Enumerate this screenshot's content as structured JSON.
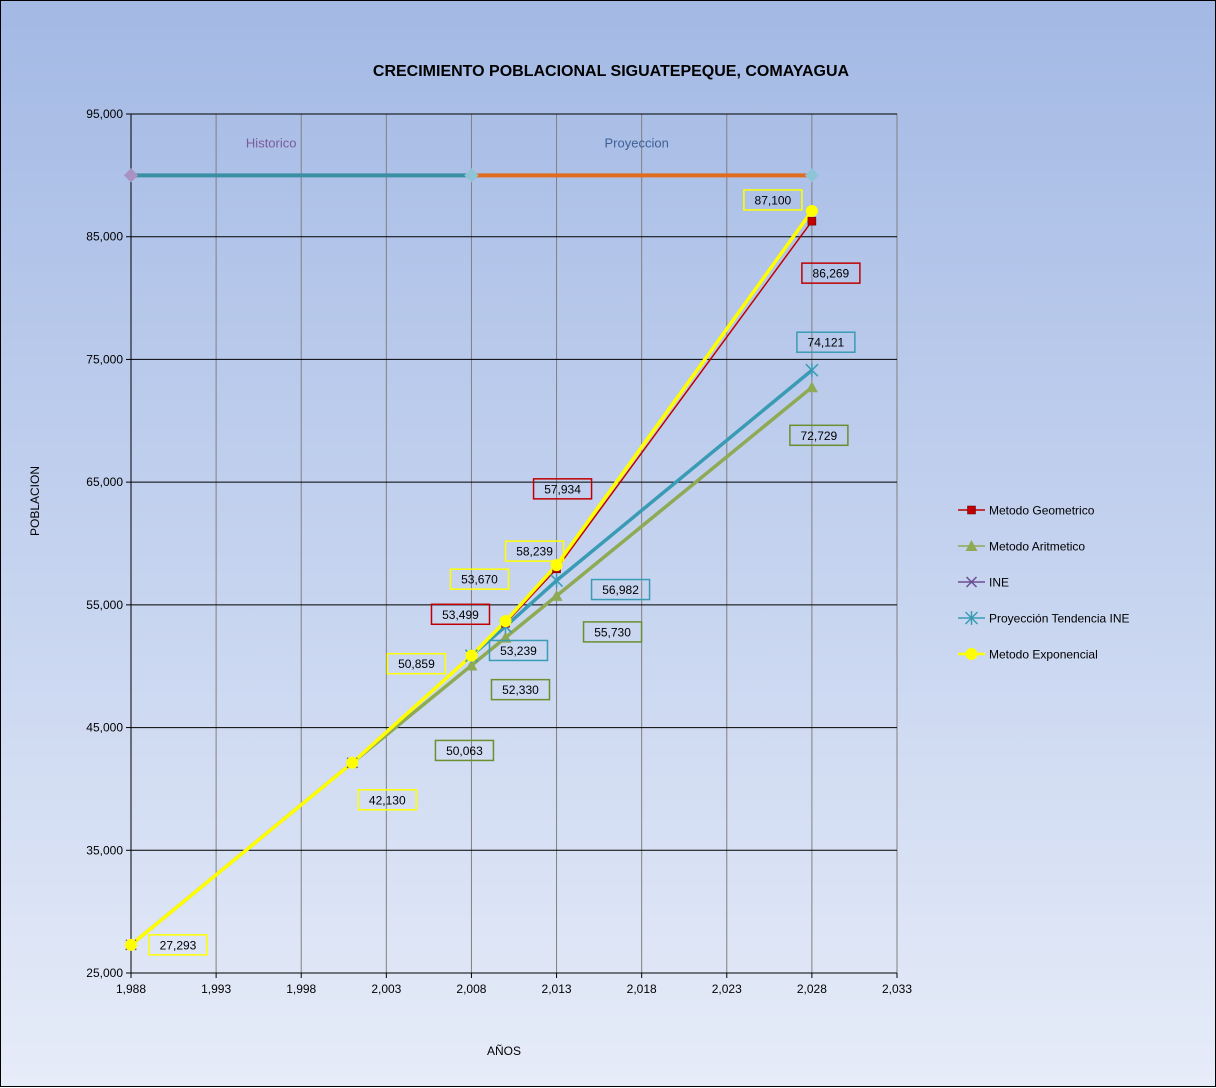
{
  "chart_data": {
    "type": "line",
    "title": "CRECIMIENTO POBLACIONAL SIGUATEPEQUE, COMAYAGUA",
    "xlabel": "AÑOS",
    "ylabel": "POBLACION",
    "xlim": [
      1988,
      2033
    ],
    "ylim": [
      25000,
      95000
    ],
    "x_ticks": [
      1988,
      1993,
      1998,
      2003,
      2008,
      2013,
      2018,
      2023,
      2028,
      2033
    ],
    "x_tick_labels": [
      "1,988",
      "1,993",
      "1,998",
      "2,003",
      "2,008",
      "2,013",
      "2,018",
      "2,023",
      "2,028",
      "2,033"
    ],
    "y_ticks": [
      25000,
      35000,
      45000,
      55000,
      65000,
      75000,
      85000,
      95000
    ],
    "y_tick_labels": [
      "25,000",
      "35,000",
      "45,000",
      "55,000",
      "65,000",
      "75,000",
      "85,000",
      "95,000"
    ],
    "grid": true,
    "legend_position": "right",
    "series": [
      {
        "name": "Metodo Geometrico",
        "color": "#c00000",
        "marker": "square",
        "points": [
          [
            1988,
            27293
          ],
          [
            2001,
            42130
          ],
          [
            2008,
            50859
          ],
          [
            2010,
            53499
          ],
          [
            2013,
            57934
          ],
          [
            2028,
            86269
          ]
        ]
      },
      {
        "name": "Metodo Aritmetico",
        "color": "#8faa55",
        "marker": "triangle",
        "points": [
          [
            1988,
            27293
          ],
          [
            2001,
            42130
          ],
          [
            2008,
            50063
          ],
          [
            2010,
            52330
          ],
          [
            2013,
            55730
          ],
          [
            2028,
            72729
          ]
        ]
      },
      {
        "name": "INE",
        "color": "#6a4c93",
        "marker": "x",
        "points": [
          [
            1988,
            27293
          ],
          [
            2001,
            42130
          ],
          [
            2008,
            50859
          ],
          [
            2010,
            53239
          ]
        ]
      },
      {
        "name": "Proyección Tendencia INE",
        "color": "#3a9bb4",
        "marker": "star",
        "points": [
          [
            2008,
            50859
          ],
          [
            2010,
            53239
          ],
          [
            2013,
            56982
          ],
          [
            2028,
            74121
          ]
        ]
      },
      {
        "name": "Metodo Exponencial",
        "color": "#ffff00",
        "marker": "circle",
        "points": [
          [
            1988,
            27293
          ],
          [
            2001,
            42130
          ],
          [
            2008,
            50859
          ],
          [
            2010,
            53670
          ],
          [
            2013,
            58239
          ],
          [
            2028,
            87100
          ]
        ]
      }
    ],
    "period_lines": [
      {
        "label": "Historico",
        "label_color": "#7a5a9a",
        "color": "#3b8fa3",
        "x_start": 1988,
        "x_end": 2008,
        "y": 90000,
        "start_marker_color": "#a892c2",
        "end_marker_color": "#8fc3d6"
      },
      {
        "label": "Proyeccion",
        "label_color": "#3d5f96",
        "color": "#e06c1e",
        "x_start": 2008,
        "x_end": 2028,
        "y": 90000,
        "start_marker_color": "#8fc3d6",
        "end_marker_color": "#8fc3d6"
      }
    ],
    "data_labels": [
      {
        "text": "27,293",
        "border": "#ffff00",
        "x": 1988,
        "y": 27293
      },
      {
        "text": "42,130",
        "border": "#ffff00",
        "x": 2001,
        "y": 42130
      },
      {
        "text": "50,063",
        "border": "#6b8e2e",
        "x": 2008,
        "y": 50063
      },
      {
        "text": "50,859",
        "border": "#ffff00",
        "x": 2008,
        "y": 50859
      },
      {
        "text": "52,330",
        "border": "#6b8e2e",
        "x": 2010,
        "y": 52330
      },
      {
        "text": "53,239",
        "border": "#3a9bb4",
        "x": 2010,
        "y": 53239
      },
      {
        "text": "53,499",
        "border": "#c00000",
        "x": 2010,
        "y": 53499
      },
      {
        "text": "53,670",
        "border": "#ffff00",
        "x": 2010,
        "y": 53670
      },
      {
        "text": "55,730",
        "border": "#6b8e2e",
        "x": 2013,
        "y": 55730
      },
      {
        "text": "56,982",
        "border": "#3a9bb4",
        "x": 2013,
        "y": 56982
      },
      {
        "text": "57,934",
        "border": "#c00000",
        "x": 2013,
        "y": 57934
      },
      {
        "text": "58,239",
        "border": "#ffff00",
        "x": 2013,
        "y": 58239
      },
      {
        "text": "72,729",
        "border": "#6b8e2e",
        "x": 2028,
        "y": 72729
      },
      {
        "text": "74,121",
        "border": "#3a9bb4",
        "x": 2028,
        "y": 74121
      },
      {
        "text": "86,269",
        "border": "#c00000",
        "x": 2028,
        "y": 86269
      },
      {
        "text": "87,100",
        "border": "#ffff00",
        "x": 2028,
        "y": 87100
      }
    ]
  }
}
